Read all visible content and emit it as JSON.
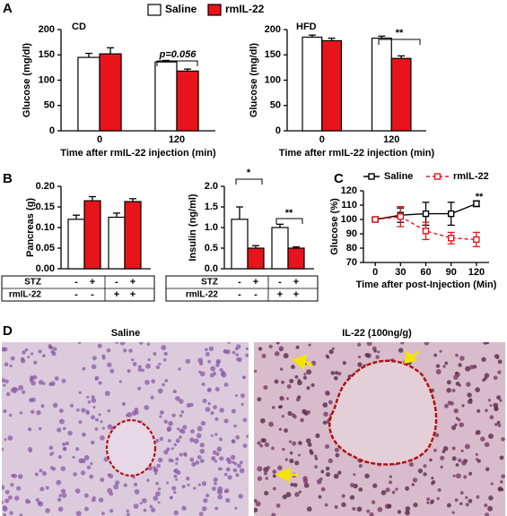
{
  "panel_labels": [
    "A",
    "B",
    "C",
    "D"
  ],
  "chart_data": [
    {
      "type": "bar",
      "subtitle": "CD",
      "ylabel": "Glucose (mg/dl)",
      "xlabel": "Time after rmIL-22 injection (min)",
      "categories": [
        "0",
        "120"
      ],
      "series": [
        {
          "name": "Saline",
          "color": "#ffffff",
          "values": [
            145,
            136
          ],
          "errors": [
            8,
            3
          ]
        },
        {
          "name": "rmIL-22",
          "color": "#e8141b",
          "values": [
            152,
            118
          ],
          "errors": [
            12,
            4
          ]
        }
      ],
      "ylim": [
        0,
        200
      ],
      "yticks": [
        0,
        50,
        100,
        150,
        200
      ],
      "annotations": [
        "p=0.056"
      ]
    },
    {
      "type": "bar",
      "subtitle": "HFD",
      "ylabel": "Glucose (mg/dl)",
      "xlabel": "Time after rmIL-22 injection (min)",
      "categories": [
        "0",
        "120"
      ],
      "series": [
        {
          "name": "Saline",
          "color": "#ffffff",
          "values": [
            185,
            183
          ],
          "errors": [
            4,
            4
          ]
        },
        {
          "name": "rmIL-22",
          "color": "#e8141b",
          "values": [
            178,
            143
          ],
          "errors": [
            5,
            5
          ]
        }
      ],
      "ylim": [
        0,
        200
      ],
      "yticks": [
        0,
        50,
        100,
        150,
        200
      ],
      "annotations": [
        "**"
      ]
    },
    {
      "type": "bar",
      "ylabel": "Pancreas (g)",
      "values": [
        0.12,
        0.165,
        0.125,
        0.163
      ],
      "errors": [
        0.01,
        0.01,
        0.01,
        0.007
      ],
      "colors": [
        "#ffffff",
        "#e8141b",
        "#ffffff",
        "#e8141b"
      ],
      "ylim": [
        0,
        0.2
      ],
      "yticks": [
        {
          "value": 0,
          "label": "0.00"
        },
        {
          "value": 0.05,
          "label": "0.05"
        },
        {
          "value": 0.1,
          "label": "0.10"
        },
        {
          "value": 0.15,
          "label": "0.15"
        },
        {
          "value": 0.2,
          "label": "0.20"
        }
      ],
      "table": [
        {
          "label": "STZ",
          "cells": [
            "-",
            "+",
            "-",
            "+"
          ]
        },
        {
          "label": "rmIL-22",
          "cells": [
            "-",
            "-",
            "+",
            "+"
          ]
        }
      ]
    },
    {
      "type": "bar",
      "ylabel": "Insulin (ng/ml)",
      "values": [
        1.2,
        0.5,
        1.0,
        0.5
      ],
      "errors": [
        0.3,
        0.06,
        0.08,
        0.03
      ],
      "colors": [
        "#ffffff",
        "#e8141b",
        "#ffffff",
        "#e8141b"
      ],
      "ylim": [
        0,
        2
      ],
      "yticks": [
        {
          "value": 0,
          "label": "0.0"
        },
        {
          "value": 0.5,
          "label": "0.5"
        },
        {
          "value": 1,
          "label": "1.0"
        },
        {
          "value": 1.5,
          "label": "1.5"
        },
        {
          "value": 2,
          "label": "2.0"
        }
      ],
      "table": [
        {
          "label": "STZ",
          "cells": [
            "-",
            "+",
            "-",
            "+"
          ]
        },
        {
          "label": "rmIL-22",
          "cells": [
            "-",
            "-",
            "+",
            "+"
          ]
        }
      ],
      "annotations": [
        "*",
        "**"
      ]
    },
    {
      "type": "line",
      "ylabel": "Glucose (%)",
      "xlabel": "Time after post-Injection (Min)",
      "x": [
        0,
        30,
        60,
        90,
        120
      ],
      "series": [
        {
          "name": "Saline",
          "color": "#000000",
          "values": [
            100,
            103,
            104,
            104,
            111
          ],
          "errors": [
            1,
            5,
            8,
            8,
            2
          ]
        },
        {
          "name": "rmIL-22",
          "color": "#e8141b",
          "values": [
            100,
            102,
            92,
            87,
            86
          ],
          "errors": [
            1,
            7,
            6,
            4,
            5
          ]
        }
      ],
      "xlim": [
        -14,
        135
      ],
      "xticks": [
        0,
        30,
        60,
        90,
        120
      ],
      "ylim": [
        70,
        120
      ],
      "yticks": [
        70,
        80,
        90,
        100,
        110,
        120
      ],
      "annotations": [
        "**"
      ]
    }
  ],
  "histology": {
    "titles": [
      "Saline",
      "IL-22 (100ng/g)"
    ]
  }
}
